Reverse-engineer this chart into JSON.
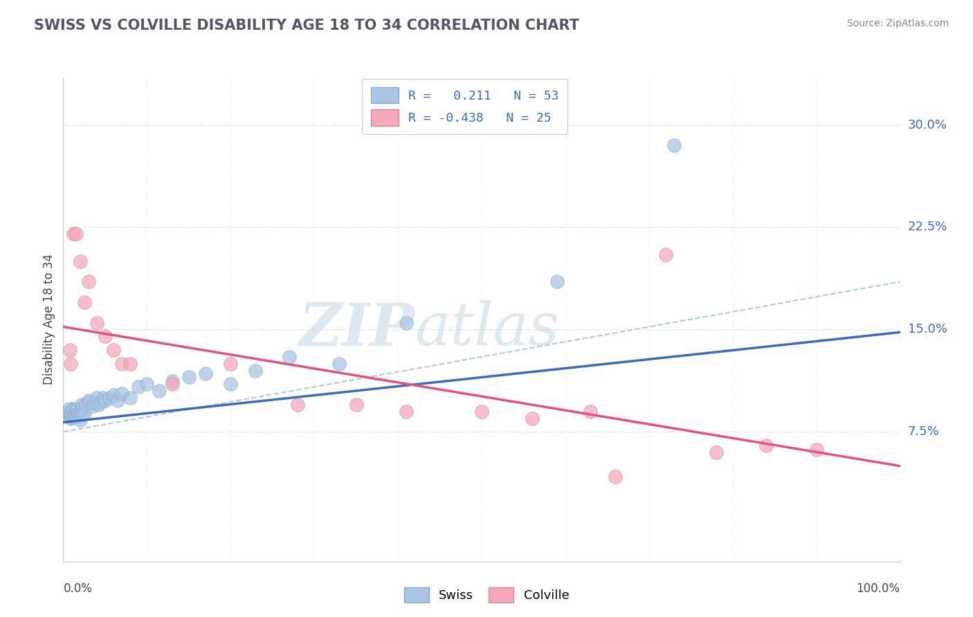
{
  "title": "SWISS VS COLVILLE DISABILITY AGE 18 TO 34 CORRELATION CHART",
  "source": "Source: ZipAtlas.com",
  "ylabel": "Disability Age 18 to 34",
  "ytick_labels": [
    "7.5%",
    "15.0%",
    "22.5%",
    "30.0%"
  ],
  "ytick_values": [
    0.075,
    0.15,
    0.225,
    0.3
  ],
  "xlim": [
    0.0,
    1.0
  ],
  "ylim": [
    -0.02,
    0.335
  ],
  "swiss_color": "#aac4e2",
  "colville_color": "#f5a8ba",
  "swiss_line_color": "#3a6bbf",
  "colville_line_color": "#e8507a",
  "dashed_line_color": "#b0c8d8",
  "watermark_color": "#c8d8e8",
  "swiss_x": [
    0.005,
    0.007,
    0.008,
    0.009,
    0.01,
    0.01,
    0.01,
    0.011,
    0.012,
    0.012,
    0.013,
    0.014,
    0.015,
    0.015,
    0.016,
    0.017,
    0.018,
    0.019,
    0.02,
    0.02,
    0.021,
    0.022,
    0.023,
    0.024,
    0.025,
    0.027,
    0.03,
    0.032,
    0.035,
    0.038,
    0.04,
    0.042,
    0.045,
    0.048,
    0.05,
    0.055,
    0.06,
    0.065,
    0.07,
    0.08,
    0.09,
    0.1,
    0.115,
    0.13,
    0.15,
    0.17,
    0.2,
    0.23,
    0.27,
    0.33,
    0.41,
    0.59,
    0.73
  ],
  "swiss_y": [
    0.09,
    0.092,
    0.088,
    0.085,
    0.086,
    0.09,
    0.088,
    0.087,
    0.092,
    0.091,
    0.086,
    0.088,
    0.087,
    0.09,
    0.091,
    0.092,
    0.088,
    0.086,
    0.084,
    0.09,
    0.091,
    0.095,
    0.088,
    0.093,
    0.089,
    0.095,
    0.098,
    0.097,
    0.094,
    0.096,
    0.1,
    0.095,
    0.097,
    0.1,
    0.098,
    0.1,
    0.102,
    0.098,
    0.103,
    0.1,
    0.108,
    0.11,
    0.105,
    0.112,
    0.115,
    0.118,
    0.11,
    0.12,
    0.13,
    0.125,
    0.155,
    0.185,
    0.285
  ],
  "colville_x": [
    0.008,
    0.009,
    0.012,
    0.015,
    0.02,
    0.025,
    0.03,
    0.04,
    0.05,
    0.06,
    0.07,
    0.08,
    0.13,
    0.2,
    0.28,
    0.35,
    0.41,
    0.5,
    0.56,
    0.63,
    0.66,
    0.72,
    0.78,
    0.84,
    0.9
  ],
  "colville_y": [
    0.135,
    0.125,
    0.22,
    0.22,
    0.2,
    0.17,
    0.185,
    0.155,
    0.145,
    0.135,
    0.125,
    0.125,
    0.11,
    0.125,
    0.095,
    0.095,
    0.09,
    0.09,
    0.085,
    0.09,
    0.042,
    0.205,
    0.06,
    0.065,
    0.062
  ],
  "swiss_line_x": [
    0.0,
    1.0
  ],
  "swiss_line_y": [
    0.082,
    0.148
  ],
  "colville_line_x": [
    0.0,
    1.0
  ],
  "colville_line_y": [
    0.152,
    0.05
  ],
  "dashed_line_x": [
    0.0,
    1.0
  ],
  "dashed_line_y": [
    0.075,
    0.185
  ]
}
